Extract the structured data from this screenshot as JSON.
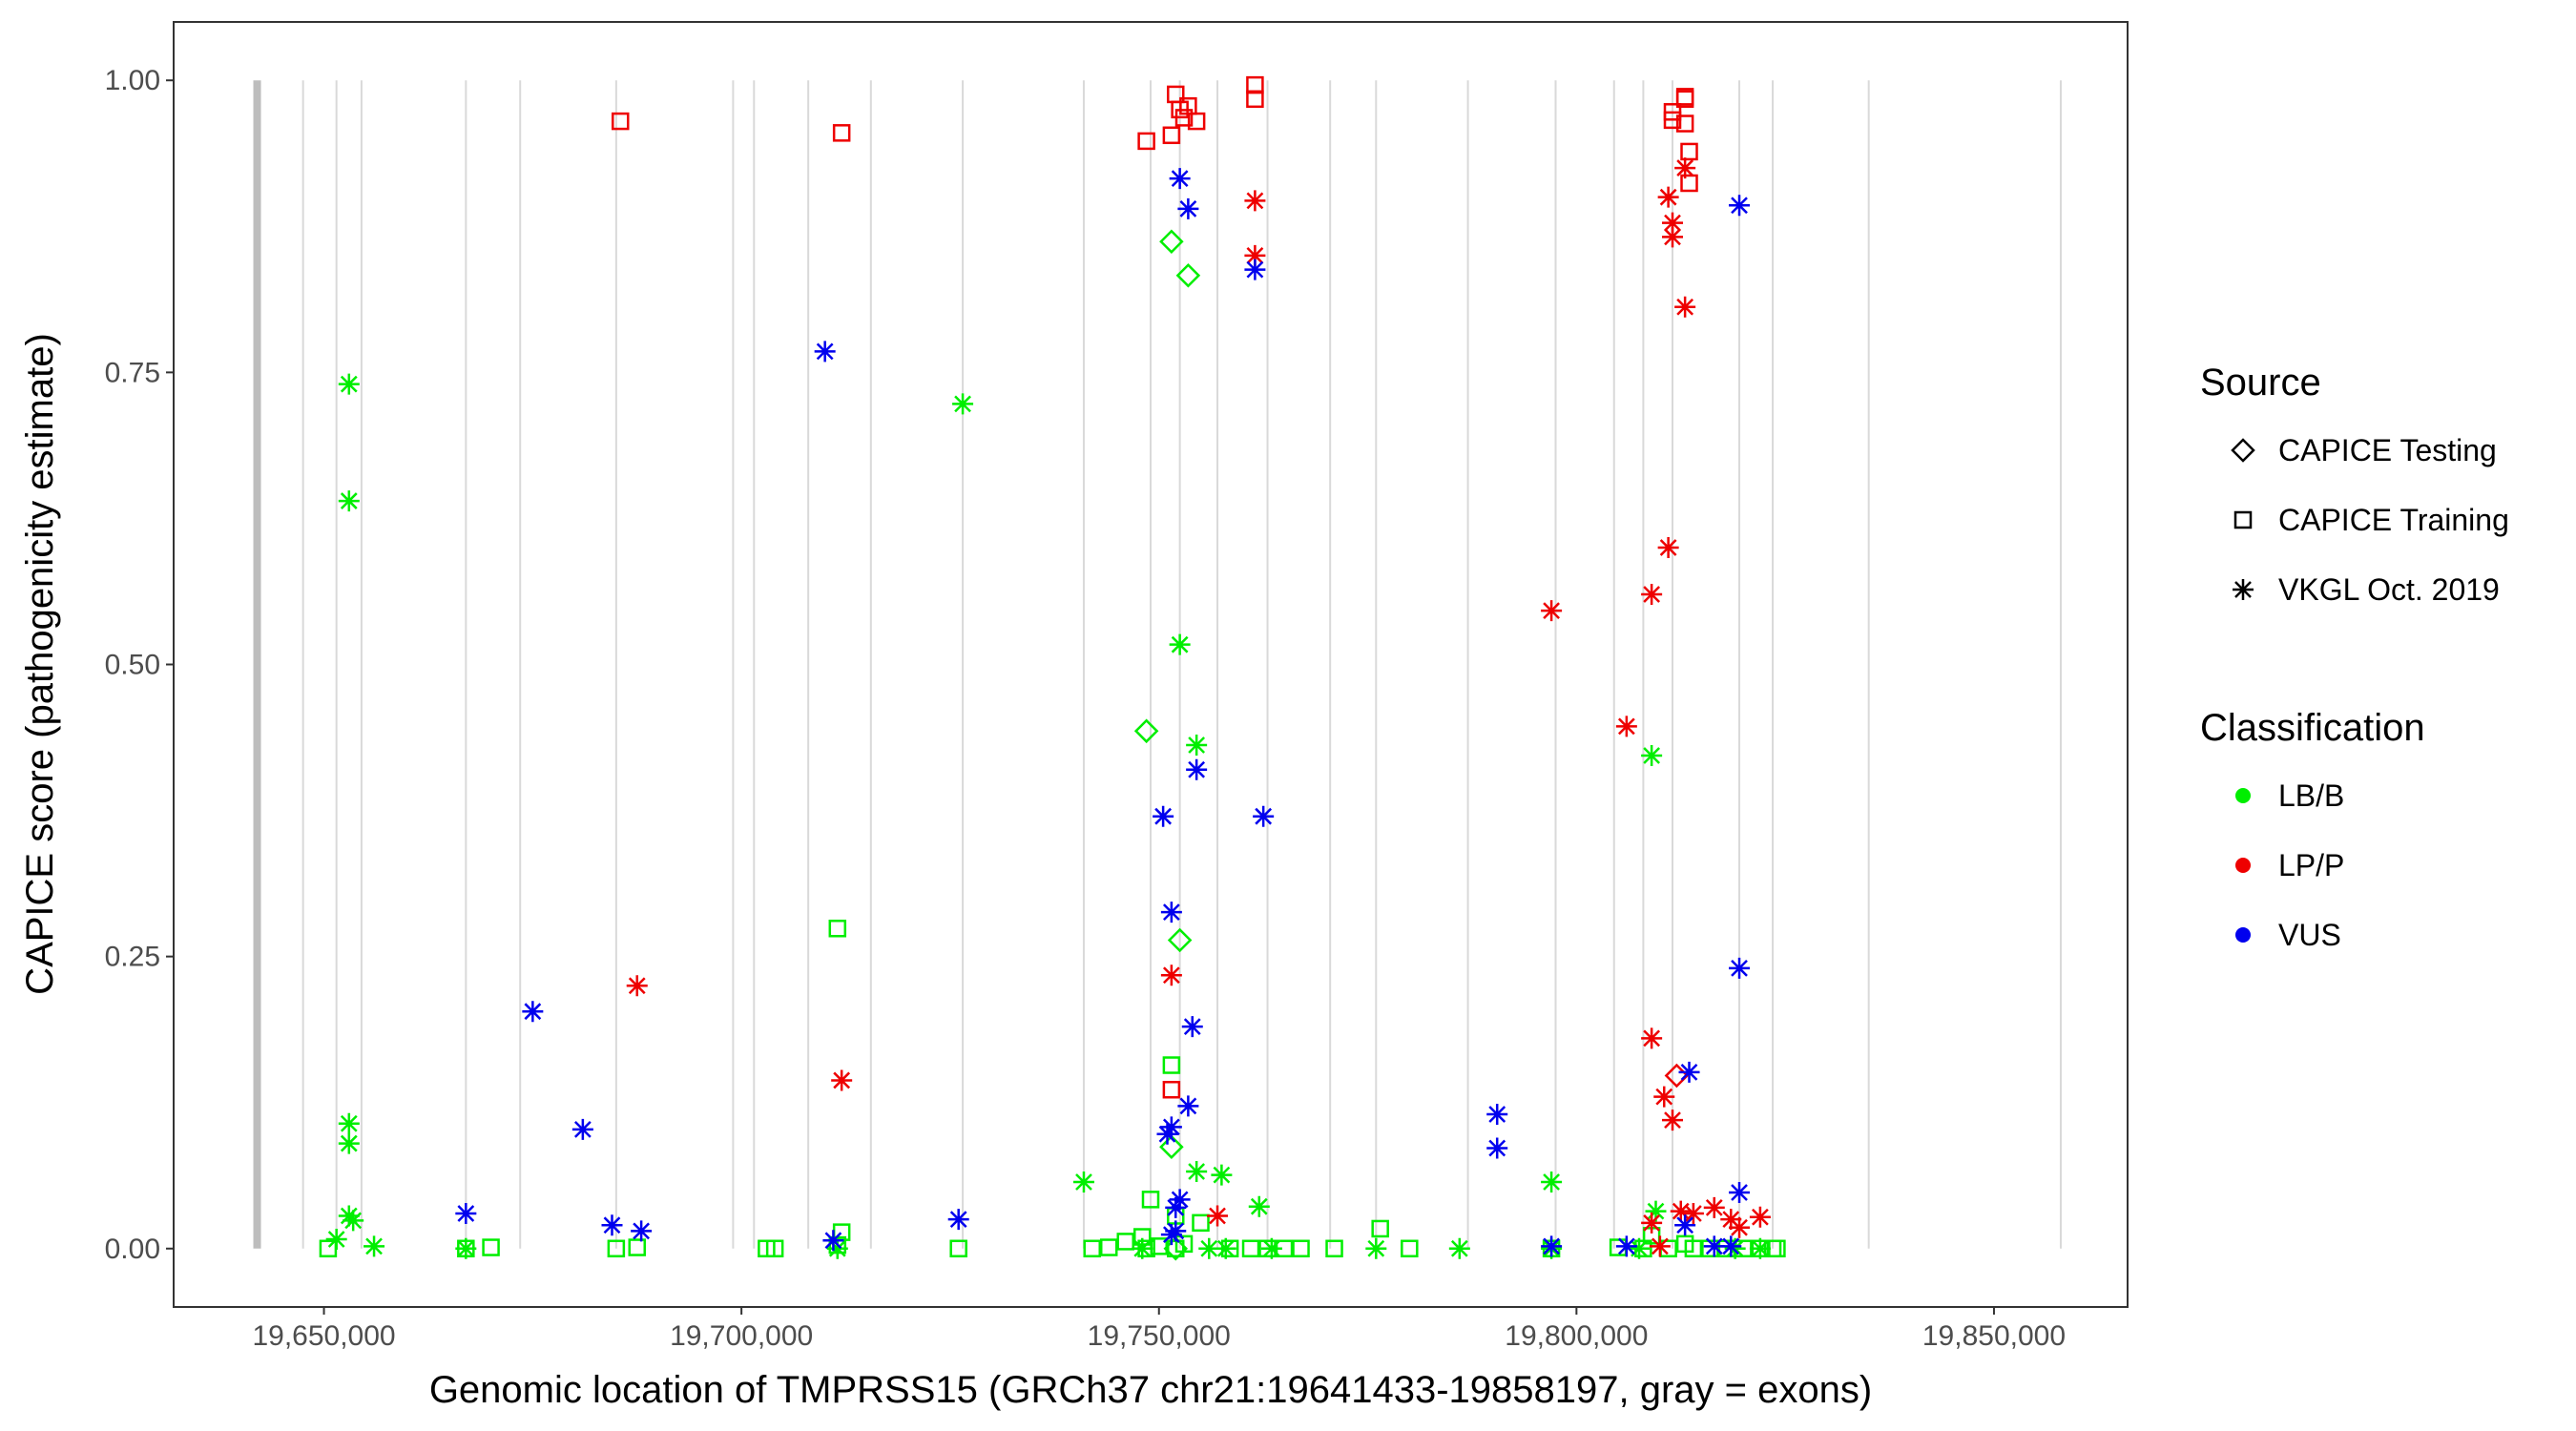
{
  "chart_data": {
    "type": "scatter",
    "title": "",
    "xlabel": "Genomic location of TMPRSS15 (GRCh37 chr21:19641433-19858197, gray = exons)",
    "ylabel": "CAPICE score (pathogenicity estimate)",
    "xlim": [
      19632000,
      19866000
    ],
    "ylim": [
      -0.05,
      1.05
    ],
    "x_ticks": [
      19650000,
      19700000,
      19750000,
      19800000,
      19850000
    ],
    "x_tick_labels": [
      "19,650,000",
      "19,700,000",
      "19,750,000",
      "19,800,000",
      "19,850,000"
    ],
    "y_ticks": [
      0,
      0.25,
      0.5,
      0.75,
      1.0
    ],
    "y_tick_labels": [
      "0.00",
      "0.25",
      "0.50",
      "0.75",
      "1.00"
    ],
    "grid": false,
    "exons": [
      19642000,
      19647500,
      19651500,
      19654500,
      19667000,
      19673500,
      19685000,
      19699000,
      19701500,
      19708000,
      19715500,
      19726500,
      19741000,
      19749000,
      19752500,
      19757000,
      19763000,
      19770500,
      19776000,
      19787000,
      19797500,
      19804500,
      19808000,
      19811500,
      19819500,
      19823500,
      19835000,
      19858000
    ],
    "exon_highlight": 19642000,
    "legend": {
      "source_title": "Source",
      "source_items": [
        {
          "label": "CAPICE Testing",
          "shape": "diamond"
        },
        {
          "label": "CAPICE Training",
          "shape": "square"
        },
        {
          "label": "VKGL Oct. 2019",
          "shape": "asterisk"
        }
      ],
      "class_title": "Classification",
      "class_items": [
        {
          "label": "LB/B",
          "color": "#00ee00"
        },
        {
          "label": "LP/P",
          "color": "#ee0000"
        },
        {
          "label": "VUS",
          "color": "#0000ee"
        }
      ]
    },
    "colors": {
      "LB/B": "#00ee00",
      "LP/P": "#ee0000",
      "VUS": "#0000ee"
    },
    "series": [
      {
        "name": "VKGL Oct. 2019 - LB/B",
        "shape": "asterisk",
        "class": "LB/B",
        "x": [
          19653000,
          19653000,
          19653000,
          19653000,
          19653000,
          19651500,
          19653500,
          19656000,
          19667000,
          19711500,
          19726500,
          19741000,
          19752500,
          19754500,
          19754500,
          19757500,
          19762000,
          19797000,
          19809000,
          19809500,
          19758000,
          19776000,
          19786000,
          19748000,
          19756000,
          19763500,
          19797000,
          19807500,
          19819000,
          19822000
        ],
        "y": [
          0.74,
          0.64,
          0.107,
          0.09,
          0.028,
          0.008,
          0.024,
          0.002,
          0.0,
          0.0,
          0.723,
          0.057,
          0.517,
          0.431,
          0.066,
          0.063,
          0.036,
          0.057,
          0.422,
          0.032,
          0.0,
          0.0,
          0.0,
          0.0,
          0.0,
          0.0,
          0.0,
          0.0,
          0.0,
          0.0
        ]
      },
      {
        "name": "CAPICE Training - LB/B",
        "shape": "square",
        "class": "LB/B",
        "x": [
          19650500,
          19667000,
          19670000,
          19685000,
          19687500,
          19703000,
          19704000,
          19711500,
          19712000,
          19711500,
          19726000,
          19742000,
          19744000,
          19746000,
          19748000,
          19749000,
          19750000,
          19751500,
          19752000,
          19753000,
          19755000,
          19758500,
          19761000,
          19763000,
          19765000,
          19767000,
          19771000,
          19776500,
          19780000,
          19797000,
          19805000,
          19808000,
          19809000,
          19811000,
          19813000,
          19814000,
          19816000,
          19818000,
          19820000,
          19822000,
          19823500,
          19824000,
          19748500,
          19752000
        ],
        "y": [
          0.0,
          0.0,
          0.001,
          0.0,
          0.001,
          0.0,
          0.0,
          0.274,
          0.014,
          0.003,
          0.0,
          0.0,
          0.001,
          0.006,
          0.01,
          0.042,
          0.002,
          0.157,
          0.028,
          0.004,
          0.022,
          0.0,
          0.0,
          0.0,
          0.0,
          0.0,
          0.0,
          0.017,
          0.0,
          0.0,
          0.001,
          0.0,
          0.011,
          0.0,
          0.004,
          0.0,
          0.0,
          0.0,
          0.0,
          0.0,
          0.0,
          0.0,
          0.0,
          0.0
        ]
      },
      {
        "name": "CAPICE Testing - LB/B",
        "shape": "diamond",
        "class": "LB/B",
        "x": [
          19751500,
          19753500,
          19748500,
          19752500,
          19751500,
          19752000
        ],
        "y": [
          0.862,
          0.833,
          0.443,
          0.264,
          0.087,
          0.0
        ]
      },
      {
        "name": "VKGL Oct. 2019 - LP/P",
        "shape": "asterisk",
        "class": "LP/P",
        "x": [
          19687500,
          19712000,
          19751500,
          19757000,
          19761500,
          19761500,
          19797000,
          19806000,
          19809000,
          19809000,
          19810500,
          19811000,
          19811000,
          19811500,
          19811500,
          19811500,
          19813000,
          19813000,
          19809000,
          19812500,
          19814000,
          19816500,
          19818500,
          19819500,
          19822000,
          19810000
        ],
        "y": [
          0.225,
          0.144,
          0.234,
          0.028,
          0.897,
          0.85,
          0.546,
          0.447,
          0.56,
          0.18,
          0.13,
          0.6,
          0.9,
          0.878,
          0.866,
          0.11,
          0.925,
          0.806,
          0.022,
          0.032,
          0.03,
          0.035,
          0.025,
          0.018,
          0.027,
          0.002
        ]
      },
      {
        "name": "CAPICE Training - LP/P",
        "shape": "square",
        "class": "LP/P",
        "x": [
          19685500,
          19712000,
          19748500,
          19751500,
          19752000,
          19752500,
          19753000,
          19753500,
          19754500,
          19761500,
          19761500,
          19811500,
          19811500,
          19813000,
          19813000,
          19813500,
          19813000,
          19813500,
          19751500
        ],
        "y": [
          0.965,
          0.955,
          0.948,
          0.953,
          0.988,
          0.975,
          0.968,
          0.978,
          0.965,
          0.996,
          0.984,
          0.973,
          0.966,
          0.986,
          0.984,
          0.939,
          0.963,
          0.912,
          0.136
        ]
      },
      {
        "name": "CAPICE Testing - LP/P",
        "shape": "diamond",
        "class": "LP/P",
        "x": [
          19812000
        ],
        "y": [
          0.148
        ]
      },
      {
        "name": "VKGL Oct. 2019 - VUS",
        "shape": "asterisk",
        "class": "VUS",
        "x": [
          19667000,
          19675000,
          19681000,
          19684500,
          19688000,
          19710000,
          19711000,
          19726000,
          19750500,
          19751500,
          19751500,
          19752500,
          19753500,
          19754500,
          19754000,
          19753500,
          19752500,
          19752000,
          19751000,
          19752000,
          19751500,
          19762500,
          19761500,
          19790500,
          19790500,
          19797000,
          19806000,
          19813500,
          19819500,
          19819500,
          19819500,
          19813000,
          19816500,
          19818500
        ],
        "y": [
          0.03,
          0.203,
          0.102,
          0.02,
          0.015,
          0.768,
          0.007,
          0.025,
          0.37,
          0.288,
          0.104,
          0.916,
          0.89,
          0.41,
          0.19,
          0.122,
          0.042,
          0.035,
          0.098,
          0.015,
          0.012,
          0.37,
          0.838,
          0.115,
          0.086,
          0.002,
          0.002,
          0.151,
          0.893,
          0.24,
          0.048,
          0.02,
          0.002,
          0.002
        ]
      }
    ]
  }
}
